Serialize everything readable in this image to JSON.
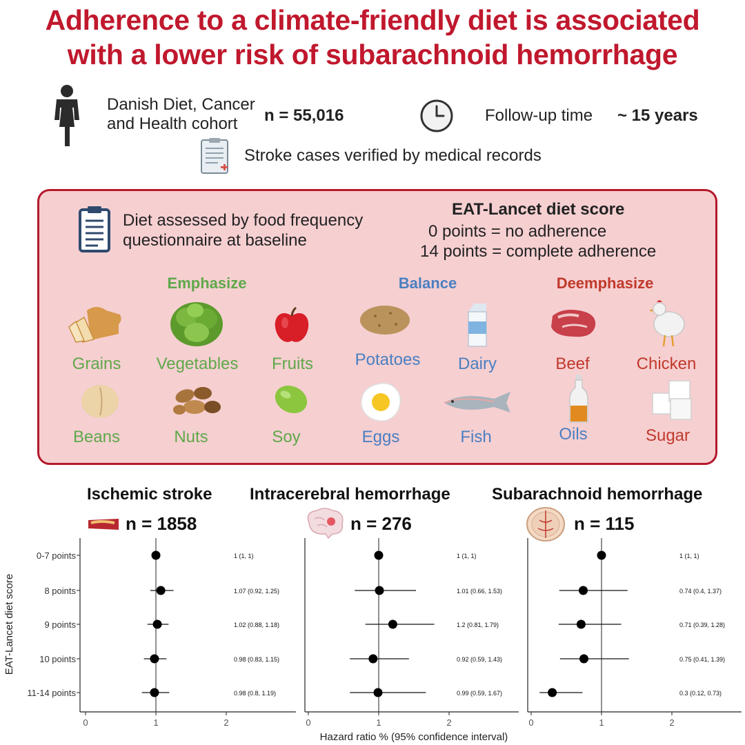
{
  "title": {
    "line1": "Adherence to a climate-friendly diet is associated",
    "line2": "with a lower risk of subarachnoid hemorrhage"
  },
  "cohort": {
    "name_line1": "Danish Diet, Cancer",
    "name_line2": "and Health cohort",
    "n": "n = 55,016",
    "followup_label": "Follow-up time",
    "followup_value": "~ 15 years",
    "verification": "Stroke cases verified by medical records",
    "icons": [
      "person-icon",
      "clock-icon",
      "medical-record-icon"
    ]
  },
  "diet_box": {
    "assessment_line1": "Diet assessed by food frequency",
    "assessment_line2": "questionnaire at baseline",
    "score_title": "EAT-Lancet diet score",
    "score_line1": "0 points = no adherence",
    "score_line2": "14 points = complete adherence",
    "categories": {
      "emphasize": "Emphasize",
      "balance": "Balance",
      "deemphasize": "Deemphasize"
    },
    "colors": {
      "emphasize": "#5fa84a",
      "balance": "#4a7fc1",
      "deemphasize": "#c0392b"
    },
    "foods": {
      "grains": "Grains",
      "vegetables": "Vegetables",
      "fruits": "Fruits",
      "potatoes": "Potatoes",
      "dairy": "Dairy",
      "beef": "Beef",
      "chicken": "Chicken",
      "beans": "Beans",
      "nuts": "Nuts",
      "soy": "Soy",
      "eggs": "Eggs",
      "fish": "Fish",
      "oils": "Oils",
      "sugar": "Sugar"
    }
  },
  "chart_data": {
    "type": "forest",
    "ylabel": "EAT-Lancet diet score",
    "xlabel": "Hazard ratio % (95% confidence interval)",
    "categories": [
      "0-7 points",
      "8 points",
      "9 points",
      "10 points",
      "11-14 points"
    ],
    "xlim": [
      0,
      2.95
    ],
    "xticks": [
      0,
      1,
      2
    ],
    "reference_line": 1,
    "panels": [
      {
        "title": "Ischemic stroke",
        "n": "n = 1858",
        "icon": "artery-icon",
        "points": [
          {
            "hr": 1,
            "lo": 1,
            "hi": 1,
            "label": "1 (1, 1)"
          },
          {
            "hr": 1.07,
            "lo": 0.92,
            "hi": 1.25,
            "label": "1.07 (0.92, 1.25)"
          },
          {
            "hr": 1.02,
            "lo": 0.88,
            "hi": 1.18,
            "label": "1.02 (0.88, 1.18)"
          },
          {
            "hr": 0.98,
            "lo": 0.83,
            "hi": 1.15,
            "label": "0.98 (0.83, 1.15)"
          },
          {
            "hr": 0.98,
            "lo": 0.8,
            "hi": 1.19,
            "label": "0.98 (0.8, 1.19)"
          }
        ]
      },
      {
        "title": "Intracerebral hemorrhage",
        "n": "n = 276",
        "icon": "brain-icon",
        "points": [
          {
            "hr": 1,
            "lo": 1,
            "hi": 1,
            "label": "1 (1, 1)"
          },
          {
            "hr": 1.01,
            "lo": 0.66,
            "hi": 1.53,
            "label": "1.01 (0.66, 1.53)"
          },
          {
            "hr": 1.2,
            "lo": 0.81,
            "hi": 1.79,
            "label": "1.2 (0.81, 1.79)"
          },
          {
            "hr": 0.92,
            "lo": 0.59,
            "hi": 1.43,
            "label": "0.92 (0.59, 1.43)"
          },
          {
            "hr": 0.99,
            "lo": 0.59,
            "hi": 1.67,
            "label": "0.99 (0.59, 1.67)"
          }
        ]
      },
      {
        "title": "Subarachnoid hemorrhage",
        "n": "n = 115",
        "icon": "brain-section-icon",
        "points": [
          {
            "hr": 1,
            "lo": 1,
            "hi": 1,
            "label": "1 (1, 1)"
          },
          {
            "hr": 0.74,
            "lo": 0.4,
            "hi": 1.37,
            "label": "0.74 (0.4, 1.37)"
          },
          {
            "hr": 0.71,
            "lo": 0.39,
            "hi": 1.28,
            "label": "0.71 (0.39, 1.28)"
          },
          {
            "hr": 0.75,
            "lo": 0.41,
            "hi": 1.39,
            "label": "0.75 (0.41, 1.39)"
          },
          {
            "hr": 0.3,
            "lo": 0.12,
            "hi": 0.73,
            "label": "0.3 (0.12, 0.73)"
          }
        ]
      }
    ]
  }
}
